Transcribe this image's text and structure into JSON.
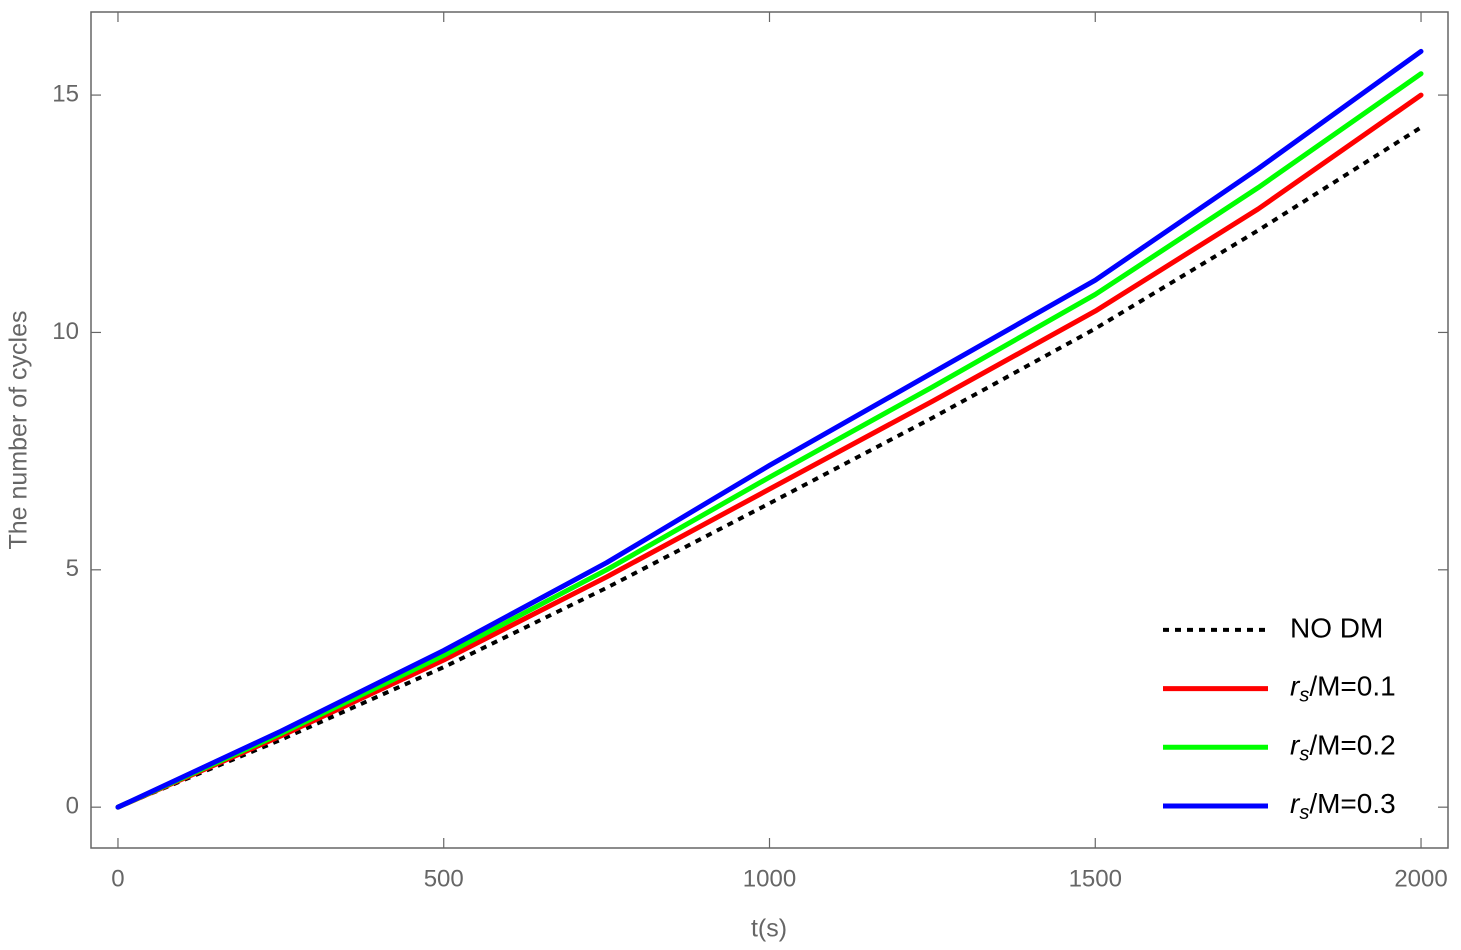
{
  "chart_data": {
    "type": "line",
    "xlabel": "t(s)",
    "ylabel": "The number of cycles",
    "x": [
      0,
      250,
      500,
      750,
      1000,
      1250,
      1500,
      1750,
      2000
    ],
    "series": [
      {
        "name": "NO DM",
        "color": "#000000",
        "dash": "dotted",
        "values": [
          0,
          1.42,
          2.95,
          4.62,
          6.4,
          8.2,
          10.08,
          12.15,
          14.32
        ]
      },
      {
        "name": "rs/M=0.1",
        "color": "#ff0000",
        "dash": "solid",
        "values": [
          0,
          1.5,
          3.1,
          4.85,
          6.7,
          8.55,
          10.45,
          12.6,
          15.0
        ]
      },
      {
        "name": "rs/M=0.2",
        "color": "#00ff00",
        "dash": "solid",
        "values": [
          0,
          1.55,
          3.2,
          5.0,
          6.95,
          8.85,
          10.8,
          13.05,
          15.45
        ]
      },
      {
        "name": "rs/M=0.3",
        "color": "#0000ff",
        "dash": "solid",
        "values": [
          0,
          1.6,
          3.3,
          5.15,
          7.2,
          9.15,
          11.1,
          13.45,
          15.92
        ]
      }
    ],
    "xlim": [
      -41.4,
      2041.4
    ],
    "ylim": [
      -0.86,
      16.75
    ],
    "xticks": [
      0,
      500,
      1000,
      1500,
      2000
    ],
    "yticks": [
      0,
      5,
      10,
      15
    ],
    "grid": false,
    "legend": "bottom-right"
  }
}
